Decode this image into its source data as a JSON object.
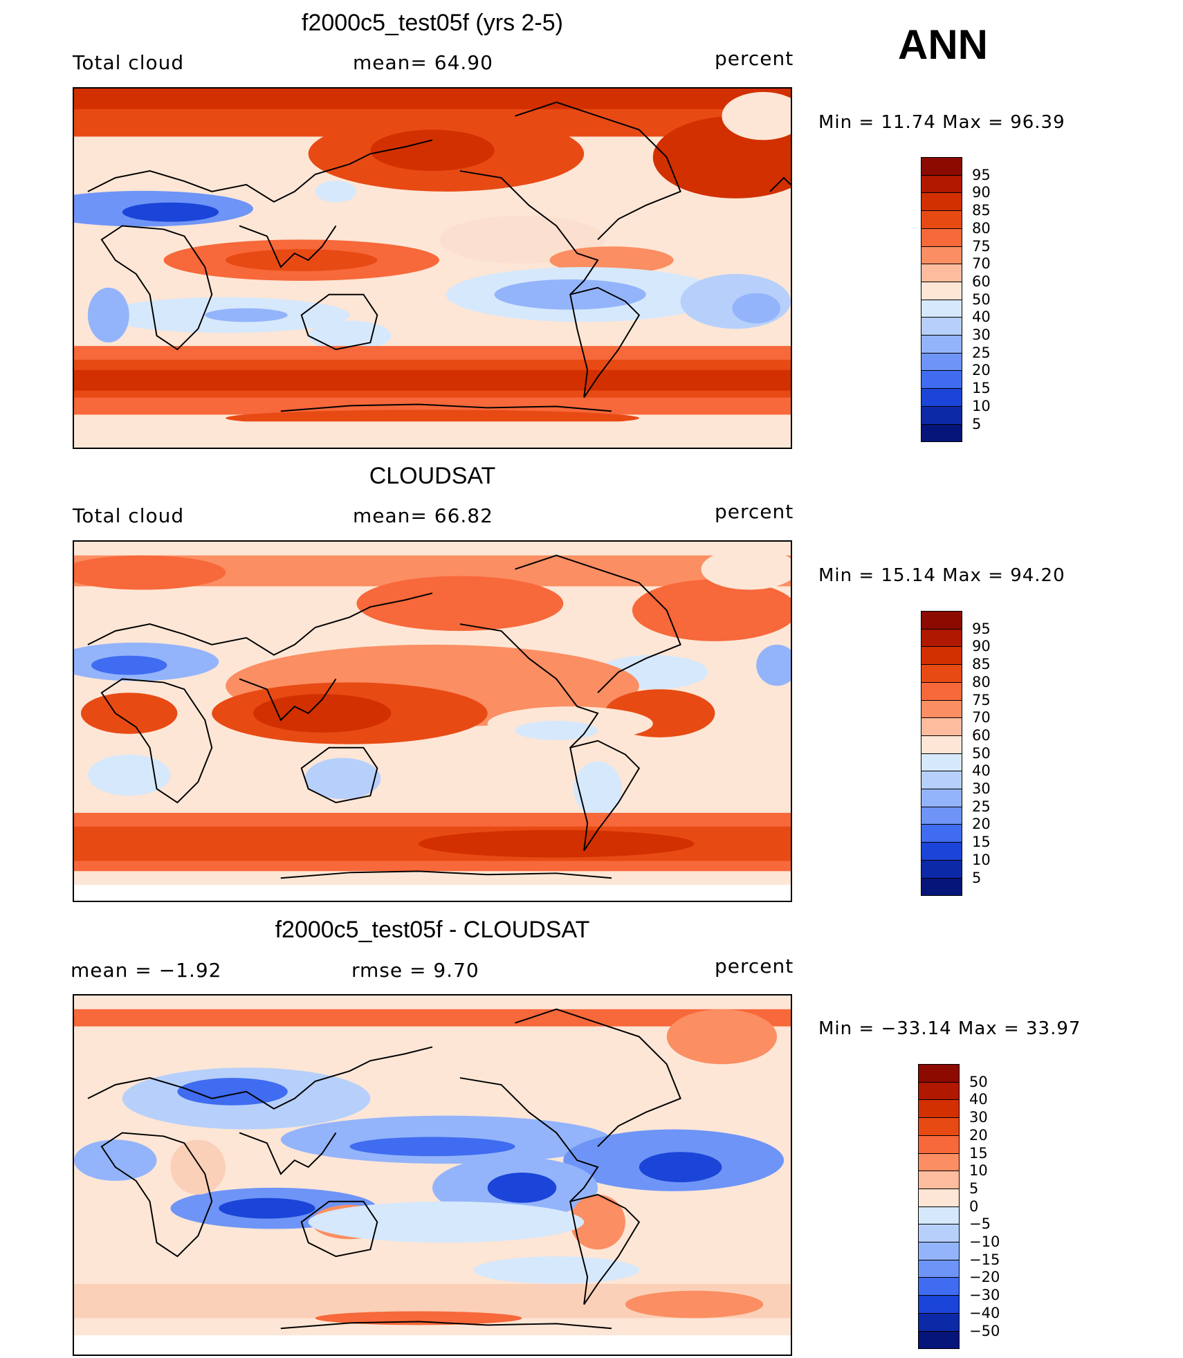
{
  "season": "ANN",
  "panels": [
    {
      "title": "f2000c5_test05f (yrs 2-5)",
      "left_label": "Total cloud",
      "center_label": "mean=   64.90",
      "units": "percent",
      "minmax": "Min  =   11.74  Max  =   96.39",
      "colorbar": {
        "labels": [
          "95",
          "90",
          "85",
          "80",
          "75",
          "70",
          "60",
          "50",
          "40",
          "30",
          "25",
          "20",
          "15",
          "10",
          "5"
        ],
        "colors": [
          "#8c0a00",
          "#b01800",
          "#d23000",
          "#e84a14",
          "#f7683a",
          "#fb8e62",
          "#fdbc9e",
          "#fde6d6",
          "#d6e8fb",
          "#b6d0fb",
          "#93b4fb",
          "#6e94f7",
          "#3f6cf0",
          "#1b44d8",
          "#0c2aa8",
          "#06157a"
        ]
      },
      "map_description": "model annual total cloud"
    },
    {
      "title": "CLOUDSAT",
      "left_label": "Total cloud",
      "center_label": "mean=   66.82",
      "units": "percent",
      "minmax": "Min  =   15.14  Max  =   94.20",
      "colorbar": {
        "labels": [
          "95",
          "90",
          "85",
          "80",
          "75",
          "70",
          "60",
          "50",
          "40",
          "30",
          "25",
          "20",
          "15",
          "10",
          "5"
        ],
        "colors": [
          "#8c0a00",
          "#b01800",
          "#d23000",
          "#e84a14",
          "#f7683a",
          "#fb8e62",
          "#fdbc9e",
          "#fde6d6",
          "#d6e8fb",
          "#b6d0fb",
          "#93b4fb",
          "#6e94f7",
          "#3f6cf0",
          "#1b44d8",
          "#0c2aa8",
          "#06157a"
        ]
      },
      "map_description": "observed annual total cloud"
    },
    {
      "title": "f2000c5_test05f - CLOUDSAT",
      "left_label": "mean  =   −1.92",
      "center_label": "rmse  =    9.70",
      "units": "percent",
      "minmax": "Min  = −33.14  Max  =   33.97",
      "colorbar": {
        "labels": [
          "50",
          "40",
          "30",
          "20",
          "15",
          "10",
          "5",
          "0",
          "−5",
          "−10",
          "−15",
          "−20",
          "−30",
          "−40",
          "−50"
        ],
        "colors": [
          "#8c0a00",
          "#b01800",
          "#d23000",
          "#e84a14",
          "#f7683a",
          "#fb8e62",
          "#fdbc9e",
          "#fde6d6",
          "#d6e8fb",
          "#b6d0fb",
          "#93b4fb",
          "#6e94f7",
          "#3f6cf0",
          "#1b44d8",
          "#0c2aa8",
          "#06157a"
        ]
      },
      "map_description": "model minus observation difference"
    }
  ]
}
